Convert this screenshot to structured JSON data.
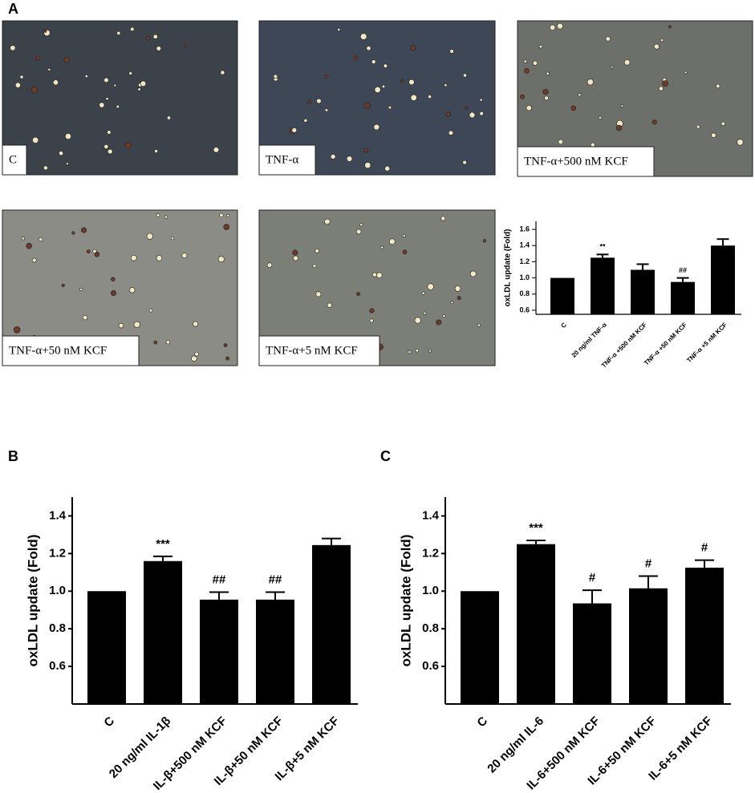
{
  "panel_labels": [
    "A",
    "B",
    "C"
  ],
  "images": [
    {
      "caption": "C"
    },
    {
      "caption": "TNF-α"
    },
    {
      "caption": "TNF-α+500 nM KCF"
    },
    {
      "caption": "TNF-α+50 nM KCF"
    },
    {
      "caption": "TNF-α+5 nM KCF"
    }
  ],
  "chart_data": [
    {
      "type": "bar",
      "y_label": "oxLDL update (Fold)",
      "categories": [
        "C",
        "20 ng/ml TNF-α",
        "TNF-α +500 nM KCF",
        "TNF-α +50 nM KCF",
        "TNF-α +5 nM KCF"
      ],
      "values": [
        1.0,
        1.25,
        1.1,
        0.95,
        1.4
      ],
      "errors": [
        0,
        0.04,
        0.07,
        0.05,
        0.08
      ],
      "annotations": [
        null,
        "**",
        null,
        "##",
        null
      ],
      "color": "#000000",
      "ylim": [
        0.55,
        1.7
      ],
      "yticks": [
        0.6,
        0.8,
        {
          "value": 1,
          "label": "1.0"
        },
        1.2,
        1.4,
        1.6
      ]
    },
    {
      "type": "bar",
      "y_label": "oxLDL update (Fold)",
      "categories": [
        "C",
        "20 ng/ml IL-1β",
        "IL-β+500 nM KCF",
        "IL-β+50 nM KCF",
        "IL-β+5 nM KCF"
      ],
      "values": [
        1.0,
        1.16,
        0.955,
        0.955,
        1.245
      ],
      "errors": [
        0,
        0.025,
        0.04,
        0.04,
        0.035
      ],
      "annotations": [
        null,
        "***",
        "##",
        "##",
        null
      ],
      "color": "#000000",
      "ylim": [
        0.4,
        1.5
      ],
      "yticks": [
        0.6,
        0.8,
        {
          "value": 1,
          "label": "1.0"
        },
        1.2,
        1.4
      ]
    },
    {
      "type": "bar",
      "y_label": "oxLDL update (Fold)",
      "categories": [
        "C",
        "20 ng/ml IL-6",
        "IL-6+500 nM KCF",
        "IL-6+50 nM KCF",
        "IL-6+5 nM KCF"
      ],
      "values": [
        1.0,
        1.25,
        0.935,
        1.015,
        1.125
      ],
      "errors": [
        0,
        0.02,
        0.07,
        0.065,
        0.04
      ],
      "annotations": [
        null,
        "***",
        "#",
        "#",
        "#"
      ],
      "color": "#000000",
      "ylim": [
        0.4,
        1.5
      ],
      "yticks": [
        0.6,
        0.8,
        {
          "value": 1,
          "label": "1.0"
        },
        1.2,
        1.4
      ]
    }
  ]
}
